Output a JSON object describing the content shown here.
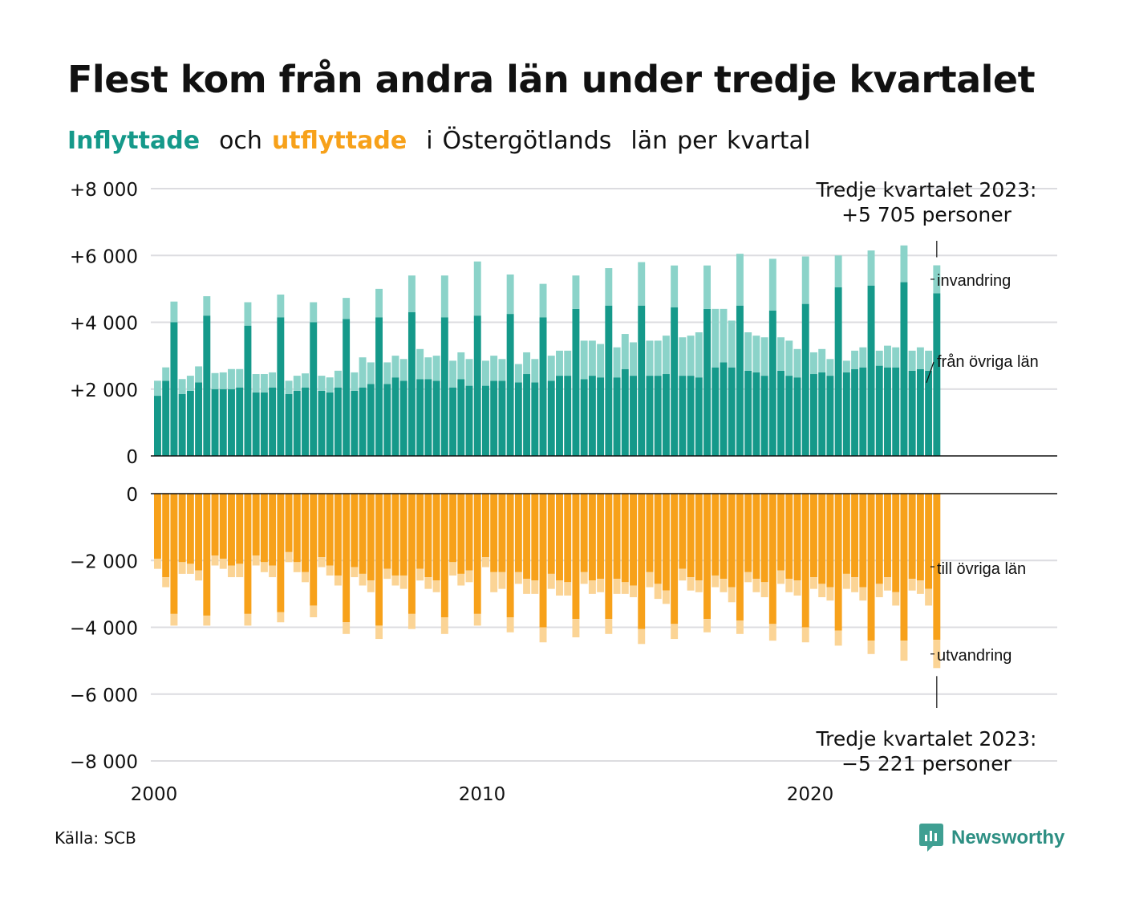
{
  "title": "Flest kom från andra län under tredje kvartalet",
  "subtitle": {
    "in_word": "Inflyttade",
    "mid_word": "och",
    "out_word": "utflyttade",
    "rest_1": "i",
    "rest_2": "Östergötlands",
    "rest_3": "län",
    "rest_4": "per",
    "rest_5": "kvartal"
  },
  "source": "Källa: SCB",
  "brand": "Newsworthy",
  "colors": {
    "in_domestic": "#15998a",
    "in_immigration": "#8bd3c9",
    "out_domestic": "#f7a11a",
    "out_emigration": "#fbd495",
    "grid": "#dcdce0",
    "text": "#111111"
  },
  "chart_data": [
    {
      "type": "bar",
      "stacked": true,
      "panel": "inflyttade",
      "x_start": "2000 Q1",
      "x_ticks": [
        "2000",
        "2010",
        "2020"
      ],
      "xlim": [
        2000,
        2027.9
      ],
      "ylim": [
        0,
        8000
      ],
      "y_ticks": [
        "0",
        "+2 000",
        "+4 000",
        "+6 000",
        "+8 000"
      ],
      "series": [
        {
          "name": "från övriga län",
          "values": [
            1800,
            2250,
            4000,
            1850,
            1950,
            2200,
            4200,
            2000,
            2000,
            2000,
            2050,
            3900,
            1900,
            1900,
            2050,
            4150,
            1850,
            1950,
            2050,
            4000,
            1950,
            1900,
            2050,
            4100,
            1950,
            2050,
            2150,
            4150,
            2150,
            2350,
            2250,
            4300,
            2300,
            2300,
            2250,
            4150,
            2050,
            2300,
            2100,
            4200,
            2100,
            2250,
            2250,
            4250,
            2200,
            2450,
            2200,
            4150,
            2250,
            2400,
            2400,
            4400,
            2300,
            2400,
            2350,
            4500,
            2350,
            2600,
            2400,
            4500,
            2400,
            2400,
            2450,
            4450,
            2400,
            2400,
            2350,
            4400,
            2650,
            2800,
            2650,
            4500,
            2550,
            2500,
            2400,
            4350,
            2550,
            2400,
            2350,
            4550,
            2450,
            2500,
            2400,
            5050,
            2500,
            2600,
            2650,
            5100,
            2700,
            2650,
            2650,
            5200,
            2550,
            2600,
            2550,
            4870
          ]
        },
        {
          "name": "invandring",
          "values": [
            450,
            400,
            620,
            450,
            450,
            480,
            580,
            480,
            500,
            600,
            550,
            700,
            550,
            550,
            450,
            680,
            400,
            450,
            420,
            600,
            450,
            450,
            500,
            630,
            550,
            900,
            650,
            850,
            650,
            650,
            650,
            1100,
            900,
            650,
            750,
            1250,
            800,
            800,
            800,
            1620,
            750,
            750,
            650,
            1180,
            550,
            650,
            700,
            1000,
            750,
            750,
            750,
            1000,
            1150,
            1050,
            1000,
            1120,
            900,
            1050,
            1000,
            1300,
            1050,
            1050,
            1150,
            1250,
            1150,
            1200,
            1350,
            1300,
            1750,
            1600,
            1400,
            1550,
            1150,
            1100,
            1150,
            1550,
            1000,
            1050,
            850,
            1420,
            650,
            700,
            500,
            950,
            350,
            550,
            600,
            1050,
            450,
            650,
            600,
            1100,
            600,
            650,
            600,
            835
          ]
        }
      ]
    },
    {
      "type": "bar",
      "stacked": true,
      "panel": "utflyttade",
      "x_start": "2000 Q1",
      "x_ticks": [
        "2000",
        "2010",
        "2020"
      ],
      "xlim": [
        2000,
        2027.9
      ],
      "ylim": [
        -8000,
        0
      ],
      "y_ticks": [
        "0",
        "−2 000",
        "−4 000",
        "−6 000",
        "−8 000"
      ],
      "series": [
        {
          "name": "till övriga län",
          "values": [
            -1950,
            -2500,
            -3600,
            -2050,
            -2100,
            -2300,
            -3650,
            -1850,
            -1950,
            -2150,
            -2100,
            -3600,
            -1850,
            -2050,
            -2150,
            -3550,
            -1750,
            -2050,
            -2350,
            -3350,
            -1900,
            -2150,
            -2450,
            -3850,
            -2200,
            -2400,
            -2600,
            -3950,
            -2250,
            -2450,
            -2450,
            -3600,
            -2250,
            -2500,
            -2600,
            -3700,
            -2050,
            -2400,
            -2300,
            -3600,
            -1900,
            -2350,
            -2350,
            -3700,
            -2350,
            -2550,
            -2600,
            -4000,
            -2400,
            -2600,
            -2650,
            -3750,
            -2350,
            -2600,
            -2550,
            -3750,
            -2550,
            -2650,
            -2750,
            -4050,
            -2350,
            -2700,
            -2900,
            -3900,
            -2250,
            -2500,
            -2600,
            -3750,
            -2450,
            -2550,
            -2800,
            -3800,
            -2350,
            -2550,
            -2650,
            -3900,
            -2300,
            -2550,
            -2600,
            -4000,
            -2500,
            -2700,
            -2800,
            -4100,
            -2400,
            -2500,
            -2800,
            -4400,
            -2700,
            -2500,
            -2950,
            -4400,
            -2550,
            -2600,
            -2850,
            -4376
          ]
        },
        {
          "name": "utvandring",
          "values": [
            -300,
            -300,
            -350,
            -350,
            -300,
            -300,
            -300,
            -300,
            -300,
            -350,
            -400,
            -350,
            -300,
            -300,
            -350,
            -300,
            -300,
            -300,
            -300,
            -350,
            -300,
            -300,
            -300,
            -350,
            -300,
            -350,
            -350,
            -400,
            -300,
            -300,
            -400,
            -450,
            -350,
            -350,
            -350,
            -500,
            -400,
            -350,
            -350,
            -350,
            -300,
            -600,
            -500,
            -450,
            -350,
            -450,
            -400,
            -450,
            -450,
            -450,
            -400,
            -550,
            -350,
            -400,
            -400,
            -450,
            -450,
            -350,
            -350,
            -450,
            -450,
            -450,
            -400,
            -450,
            -350,
            -400,
            -350,
            -400,
            -350,
            -400,
            -450,
            -400,
            -300,
            -400,
            -450,
            -500,
            -400,
            -400,
            -450,
            -450,
            -350,
            -400,
            -400,
            -450,
            -450,
            -450,
            -400,
            -400,
            -400,
            -400,
            -400,
            -600,
            -350,
            -400,
            -500,
            -845
          ]
        }
      ]
    }
  ],
  "annotations": {
    "top_title": "Tredje kvartalet 2023:",
    "top_value": "+5 705 personer",
    "bottom_title": "Tredje kvartalet 2023:",
    "bottom_value": "−5 221 personer",
    "label_invandring": "invandring",
    "label_fran_ovriga_lan": "från övriga län",
    "label_till_ovriga_lan": "till övriga län",
    "label_utvandring": "utvandring"
  }
}
